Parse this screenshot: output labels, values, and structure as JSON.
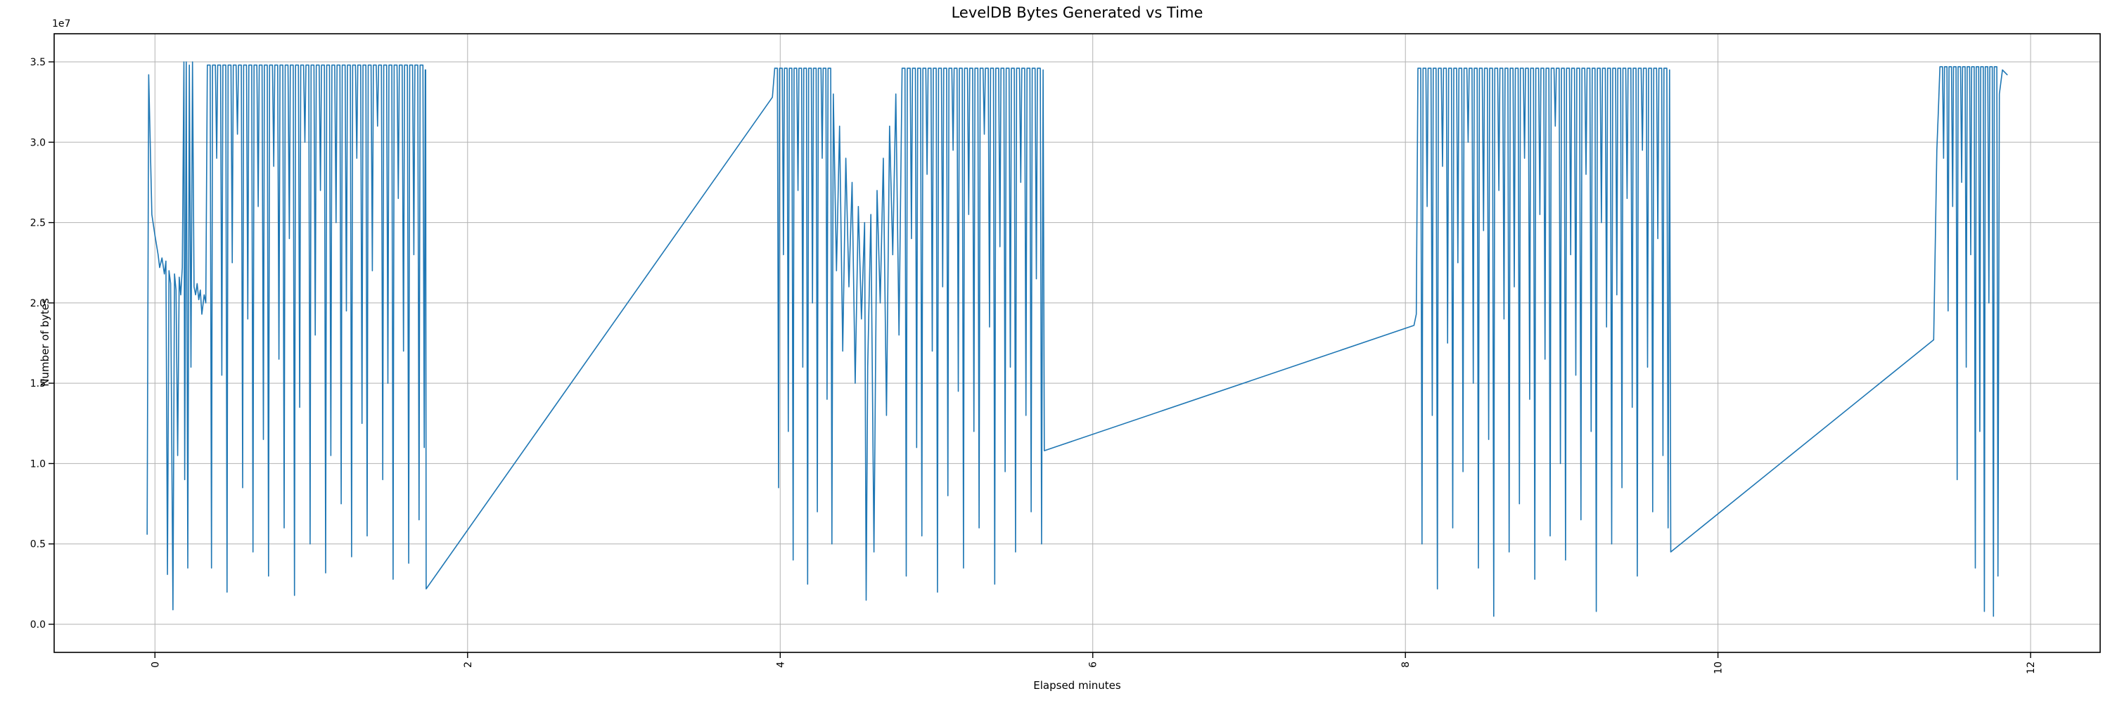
{
  "figure": {
    "title": "LevelDB Bytes Generated vs Time",
    "xlabel": "Elapsed minutes",
    "ylabel": "Number of bytes",
    "y_offset_label": "1e7",
    "background_color": "#ffffff",
    "line_color": "#1f77b4",
    "grid_color": "#b2b2b2",
    "spine_color": "#000000"
  },
  "chart_data": {
    "type": "line",
    "title": "LevelDB Bytes Generated vs Time",
    "xlabel": "Elapsed minutes",
    "ylabel": "Number of bytes",
    "x_unit": "minutes",
    "y_unit": "bytes",
    "y_scale_factor": 10000000,
    "grid": true,
    "legend": null,
    "xlim": [
      -0.645,
      12.445
    ],
    "ylim_1e7": [
      -0.175,
      3.675
    ],
    "x_ticks": [
      0,
      2,
      4,
      6,
      8,
      10,
      12
    ],
    "x_tick_labels": [
      "0",
      "2",
      "4",
      "6",
      "8",
      "10",
      "12"
    ],
    "x_tick_rotation_deg": 90,
    "y_ticks_1e7": [
      0.0,
      0.5,
      1.0,
      1.5,
      2.0,
      2.5,
      3.0,
      3.5
    ],
    "y_tick_labels": [
      "0.0",
      "0.5",
      "1.0",
      "1.5",
      "2.0",
      "2.5",
      "3.0",
      "3.5"
    ],
    "active_burst_intervals_minutes": [
      [
        -0.05,
        1.73
      ],
      [
        3.95,
        5.69
      ],
      [
        8.06,
        9.7
      ],
      [
        11.38,
        11.85
      ]
    ],
    "values_in_units_of_1e7_bytes": true,
    "line_pieces": [
      {
        "label": "startup-spike-and-plateau",
        "type": "points",
        "pts": [
          [
            -0.05,
            0.56
          ],
          [
            -0.04,
            3.42
          ],
          [
            -0.02,
            2.55
          ],
          [
            0.0,
            2.42
          ],
          [
            0.02,
            2.3
          ],
          [
            0.03,
            2.22
          ],
          [
            0.045,
            2.28
          ],
          [
            0.06,
            2.18
          ],
          [
            0.07,
            2.26
          ],
          [
            0.08,
            0.31
          ],
          [
            0.09,
            2.2
          ],
          [
            0.1,
            2.12
          ],
          [
            0.115,
            0.09
          ],
          [
            0.125,
            2.18
          ],
          [
            0.135,
            2.08
          ],
          [
            0.145,
            1.05
          ],
          [
            0.155,
            2.16
          ],
          [
            0.165,
            2.05
          ],
          [
            0.175,
            2.22
          ],
          [
            0.185,
            3.5
          ],
          [
            0.19,
            0.9
          ],
          [
            0.2,
            3.5
          ],
          [
            0.21,
            0.35
          ],
          [
            0.22,
            3.48
          ],
          [
            0.23,
            1.6
          ],
          [
            0.24,
            3.5
          ],
          [
            0.25,
            2.1
          ],
          [
            0.26,
            2.05
          ],
          [
            0.27,
            2.12
          ],
          [
            0.28,
            2.02
          ],
          [
            0.29,
            2.08
          ],
          [
            0.3,
            1.93
          ],
          [
            0.315,
            2.05
          ],
          [
            0.325,
            2.0
          ]
        ]
      },
      {
        "label": "burst-1",
        "type": "comb",
        "start": 0.335,
        "dt": 0.0332,
        "top": 3.48,
        "bottoms": [
          0.35,
          2.9,
          1.55,
          0.2,
          2.25,
          3.05,
          0.85,
          1.9,
          0.45,
          2.6,
          1.15,
          0.3,
          2.85,
          1.65,
          0.6,
          2.4,
          0.18,
          1.35,
          3.0,
          0.5,
          1.8,
          2.7,
          0.32,
          1.05,
          2.5,
          0.75,
          1.95,
          0.42,
          2.9,
          1.25,
          0.55,
          2.2,
          3.1,
          0.9,
          1.5,
          0.28,
          2.65,
          1.7,
          0.38,
          2.3,
          0.65,
          1.1
        ]
      },
      {
        "label": "burst-1-end",
        "type": "points",
        "pts": [
          [
            1.729,
            3.45
          ],
          [
            1.732,
            3.45
          ],
          [
            1.735,
            0.22
          ]
        ]
      },
      {
        "label": "gap-1-diagonal",
        "type": "points",
        "pts": [
          [
            3.95,
            3.28
          ]
        ]
      },
      {
        "label": "burst-2a",
        "type": "comb",
        "start": 3.965,
        "dt": 0.031,
        "top": 3.46,
        "bottoms": [
          0.85,
          2.3,
          1.2,
          0.4,
          2.7,
          1.6,
          0.25,
          2.0,
          0.7,
          2.9,
          1.4,
          0.5
        ]
      },
      {
        "label": "burst-2-noisy-valley",
        "type": "points",
        "pts": [
          [
            4.34,
            3.3
          ],
          [
            4.36,
            2.2
          ],
          [
            4.38,
            3.1
          ],
          [
            4.4,
            1.7
          ],
          [
            4.42,
            2.9
          ],
          [
            4.44,
            2.1
          ],
          [
            4.46,
            2.75
          ],
          [
            4.48,
            1.5
          ],
          [
            4.5,
            2.6
          ],
          [
            4.52,
            1.9
          ],
          [
            4.54,
            2.5
          ],
          [
            4.55,
            0.15
          ],
          [
            4.56,
            1.6
          ],
          [
            4.58,
            2.55
          ],
          [
            4.6,
            0.45
          ],
          [
            4.62,
            2.7
          ],
          [
            4.64,
            2.0
          ],
          [
            4.66,
            2.9
          ],
          [
            4.68,
            1.3
          ],
          [
            4.7,
            3.1
          ],
          [
            4.72,
            2.3
          ],
          [
            4.74,
            3.3
          ],
          [
            4.76,
            1.8
          ]
        ]
      },
      {
        "label": "burst-2b",
        "type": "comb",
        "start": 4.78,
        "dt": 0.0333,
        "top": 3.46,
        "bottoms": [
          0.3,
          2.4,
          1.1,
          0.55,
          2.8,
          1.7,
          0.2,
          2.1,
          0.8,
          2.95,
          1.45,
          0.35,
          2.55,
          1.2,
          0.6,
          3.05,
          1.85,
          0.25,
          2.35,
          0.95,
          1.6,
          0.45,
          2.75,
          1.3,
          0.7,
          2.15,
          0.5
        ]
      },
      {
        "label": "burst-2-end",
        "type": "points",
        "pts": [
          [
            5.682,
            3.45
          ],
          [
            5.69,
            1.08
          ]
        ]
      },
      {
        "label": "gap-2-diagonal",
        "type": "points",
        "pts": [
          [
            8.055,
            1.86
          ],
          [
            8.07,
            1.93
          ]
        ]
      },
      {
        "label": "burst-3",
        "type": "comb",
        "start": 8.08,
        "dt": 0.0328,
        "top": 3.46,
        "bottoms": [
          0.5,
          2.6,
          1.3,
          0.22,
          2.85,
          1.75,
          0.6,
          2.25,
          0.95,
          3.0,
          1.5,
          0.35,
          2.45,
          1.15,
          0.05,
          2.7,
          1.9,
          0.45,
          2.1,
          0.75,
          2.9,
          1.4,
          0.28,
          2.55,
          1.65,
          0.55,
          3.1,
          1.0,
          0.4,
          2.3,
          1.55,
          0.65,
          2.8,
          1.2,
          0.08,
          2.5,
          1.85,
          0.5,
          2.05,
          0.85,
          2.65,
          1.35,
          0.3,
          2.95,
          1.6,
          0.7,
          2.4,
          1.05,
          0.6
        ]
      },
      {
        "label": "burst-3-end",
        "type": "points",
        "pts": [
          [
            9.69,
            3.45
          ],
          [
            9.698,
            0.45
          ]
        ]
      },
      {
        "label": "gap-3-diagonal",
        "type": "points",
        "pts": [
          [
            11.38,
            1.77
          ],
          [
            11.4,
            2.95
          ],
          [
            11.41,
            3.2
          ]
        ]
      },
      {
        "label": "burst-4",
        "type": "comb",
        "start": 11.42,
        "dt": 0.029,
        "top": 3.47,
        "bottoms": [
          2.9,
          1.95,
          2.6,
          0.9,
          2.75,
          1.6,
          2.3,
          0.35,
          1.2,
          0.08,
          2.0,
          0.05,
          0.3
        ]
      },
      {
        "label": "burst-4-end",
        "type": "points",
        "pts": [
          [
            11.8,
            3.3
          ],
          [
            11.82,
            3.45
          ],
          [
            11.85,
            3.42
          ]
        ]
      }
    ]
  }
}
